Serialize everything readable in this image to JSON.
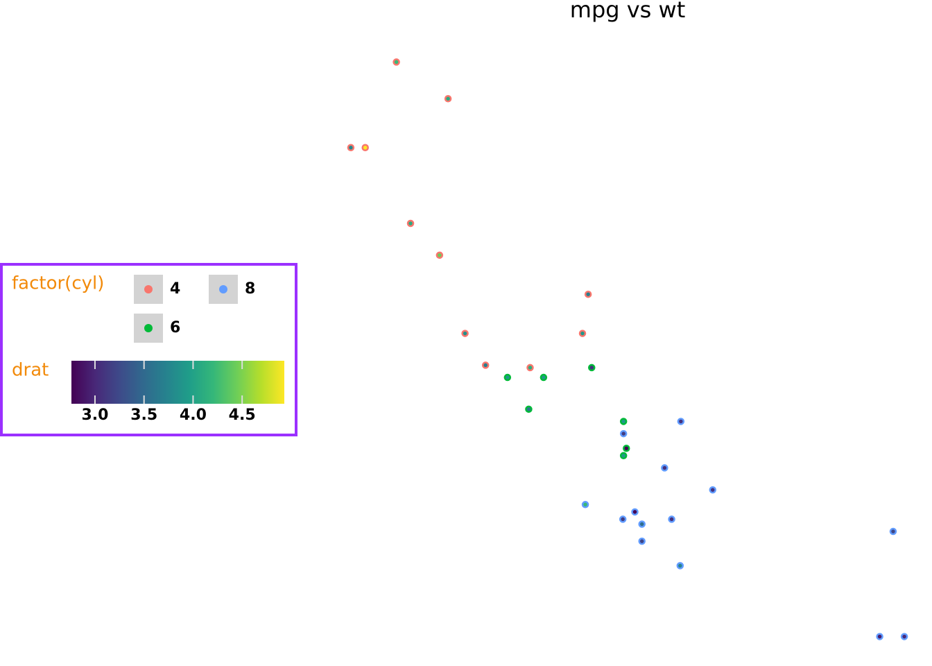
{
  "chart_data": {
    "type": "scatter",
    "title": "mpg vs wt",
    "xlim": [
      1.3175,
      5.6195
    ],
    "ylim": [
      9.225,
      35.075
    ],
    "legend": {
      "title": "factor(cyl)",
      "position": "left"
    },
    "colorbar": {
      "title": "drat",
      "colormap": "viridis",
      "lim": [
        2.76,
        4.93
      ],
      "ticks": [
        {
          "value": 3.0,
          "label": "3.0"
        },
        3.5,
        {
          "value": 4.0,
          "label": "4.0"
        },
        4.5
      ]
    },
    "series": [
      {
        "name": "4",
        "color": "#F8766D",
        "x": [
          2.32,
          3.19,
          3.15,
          2.2,
          1.615,
          1.835,
          2.465,
          1.935,
          2.14,
          1.513,
          2.78
        ],
        "values": [
          22.8,
          24.4,
          22.8,
          32.4,
          30.4,
          33.9,
          21.5,
          27.3,
          26.0,
          30.4,
          21.4
        ],
        "drat": [
          3.85,
          3.69,
          3.92,
          4.08,
          4.93,
          4.22,
          3.7,
          4.08,
          4.43,
          3.77,
          4.11
        ]
      },
      {
        "name": "6",
        "color": "#00BA38",
        "x": [
          2.62,
          2.875,
          3.215,
          3.46,
          3.44,
          3.44,
          2.77
        ],
        "values": [
          21.0,
          21.0,
          21.4,
          18.1,
          19.2,
          17.8,
          19.7
        ],
        "drat": [
          3.9,
          3.9,
          3.08,
          2.76,
          3.92,
          3.92,
          3.62
        ]
      },
      {
        "name": "8",
        "color": "#619CFF",
        "x": [
          3.44,
          3.57,
          4.07,
          3.73,
          3.78,
          5.25,
          5.424,
          5.345,
          3.52,
          3.435,
          3.84,
          3.845,
          3.17,
          3.57
        ],
        "values": [
          18.7,
          14.3,
          16.4,
          17.3,
          15.2,
          10.4,
          10.4,
          14.7,
          15.5,
          15.2,
          13.3,
          19.2,
          15.8,
          15.0
        ],
        "drat": [
          3.15,
          3.21,
          3.07,
          3.07,
          3.07,
          2.93,
          3.0,
          3.23,
          2.76,
          3.15,
          3.73,
          3.08,
          4.22,
          3.54
        ]
      }
    ]
  }
}
